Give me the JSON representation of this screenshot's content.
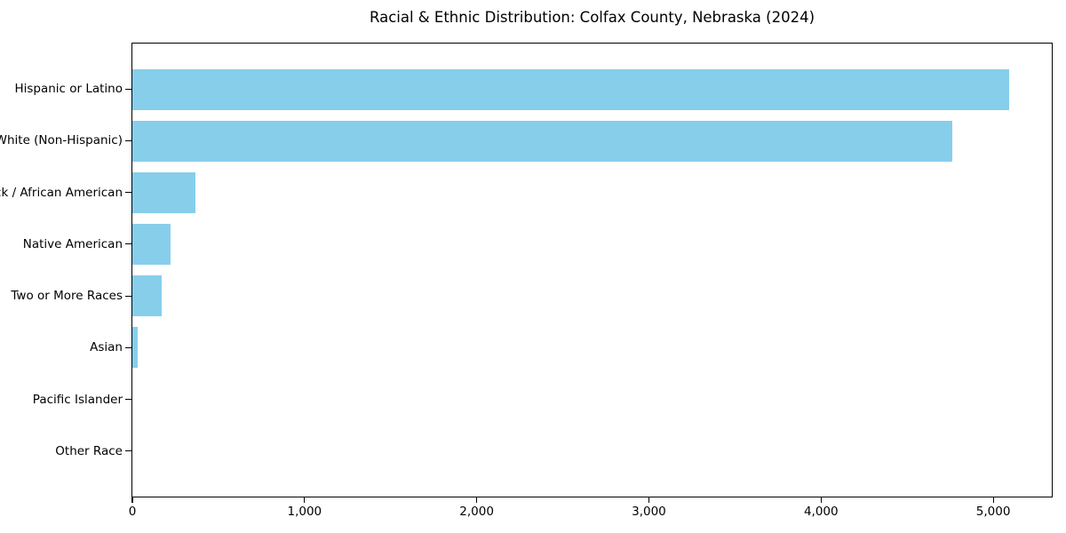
{
  "figure": {
    "background": "#ffffff"
  },
  "chart_data": {
    "type": "bar",
    "orientation": "horizontal",
    "title": "Racial & Ethnic Distribution: Colfax County, Nebraska (2024)",
    "categories": [
      "Hispanic or Latino",
      "White (Non-Hispanic)",
      "Black / African American",
      "Native American",
      "Two or More Races",
      "Asian",
      "Pacific Islander",
      "Other Race"
    ],
    "values": [
      5090,
      4760,
      365,
      220,
      170,
      30,
      0,
      0
    ],
    "xlabel": "",
    "ylabel": "",
    "xlim": [
      0,
      5340
    ],
    "x_ticks": [
      0,
      1000,
      2000,
      3000,
      4000,
      5000
    ],
    "x_tick_labels": [
      "0",
      "1,000",
      "2,000",
      "3,000",
      "4,000",
      "5,000"
    ],
    "bar_color": "#87CEEB",
    "axis_color": "#000000",
    "text_color": "#000000",
    "grid": false,
    "legend": "none"
  }
}
